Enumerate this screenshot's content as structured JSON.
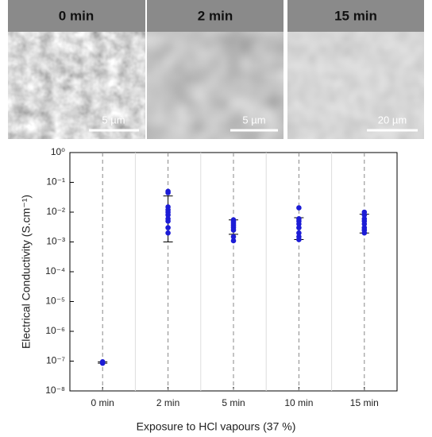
{
  "images": [
    {
      "label": "0 min",
      "scale_bar": "5 µm"
    },
    {
      "label": "2 min",
      "scale_bar": "5 µm"
    },
    {
      "label": "15 min",
      "scale_bar": "20 µm"
    }
  ],
  "chart_data": {
    "type": "scatter",
    "x_label": "Exposure to HCl vapours (37 %)",
    "y_label": "Electrical Conductivity (S.cm⁻¹)",
    "categories": [
      "0 min",
      "2 min",
      "5 min",
      "10 min",
      "15 min"
    ],
    "values": [
      [
        9e-08,
        9.5e-08,
        8.5e-08
      ],
      [
        0.05,
        0.045,
        0.015,
        0.012,
        0.01,
        0.008,
        0.006,
        0.005,
        0.003,
        0.002
      ],
      [
        0.0055,
        0.005,
        0.0045,
        0.004,
        0.0035,
        0.003,
        0.0025,
        0.0015,
        0.0011
      ],
      [
        0.014,
        0.006,
        0.005,
        0.004,
        0.003,
        0.002,
        0.0015,
        0.0012
      ],
      [
        0.01,
        0.008,
        0.006,
        0.005,
        0.004,
        0.003,
        0.0025,
        0.002
      ]
    ],
    "error_bars": [
      [
        8.5e-08,
        9.5e-08
      ],
      [
        0.001,
        0.035
      ],
      [
        0.0018,
        0.0055
      ],
      [
        0.0012,
        0.0065
      ],
      [
        0.002,
        0.0085
      ]
    ],
    "color": "#1c1cd6",
    "log_y": true,
    "grid": true,
    "ylim": [
      1e-08,
      1
    ],
    "yticks": [
      {
        "value": 1e-08,
        "label": "10⁻⁸"
      },
      {
        "value": 1e-07,
        "label": "10⁻⁷"
      },
      {
        "value": 1e-06,
        "label": "10⁻⁶"
      },
      {
        "value": 1e-05,
        "label": "10⁻⁵"
      },
      {
        "value": 0.0001,
        "label": "10⁻⁴"
      },
      {
        "value": 0.001,
        "label": "10⁻³"
      },
      {
        "value": 0.01,
        "label": "10⁻²"
      },
      {
        "value": 0.1,
        "label": "10⁻¹"
      },
      {
        "value": 1,
        "label": "10⁰"
      }
    ]
  }
}
